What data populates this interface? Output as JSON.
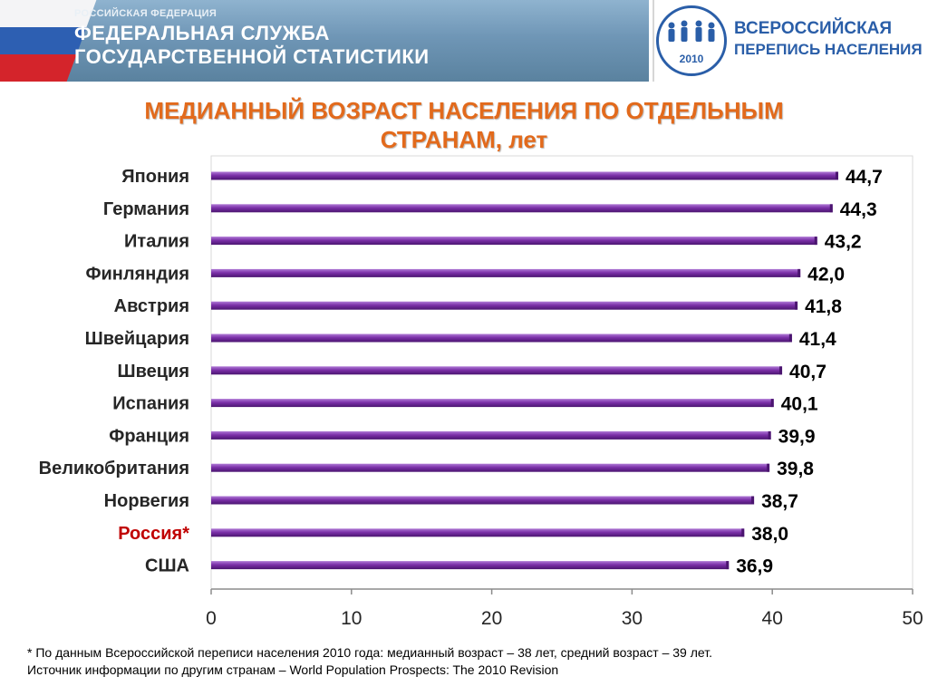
{
  "header": {
    "small": "РОССИЙСКАЯ ФЕДЕРАЦИЯ",
    "line1": "ФЕДЕРАЛЬНАЯ СЛУЖБА",
    "line2": "ГОСУДАРСТВЕННОЙ СТАТИСТИКИ",
    "logo_text1": "ВСЕРОССИЙСКАЯ",
    "logo_text2": "ПЕРЕПИСЬ НАСЕЛЕНИЯ",
    "logo_year": "2010"
  },
  "colors": {
    "bar": "#7b30a8",
    "bar_dark": "#4b1570",
    "highlight_label": "#c00000",
    "title": "#e26a1c"
  },
  "chart_data": {
    "type": "bar",
    "orientation": "horizontal",
    "title": "МЕДИАННЫЙ ВОЗРАСТ НАСЕЛЕНИЯ ПО ОТДЕЛЬНЫМ СТРАНАМ, лет",
    "categories": [
      "Япония",
      "Германия",
      "Италия",
      "Финляндия",
      "Австрия",
      "Швейцария",
      "Швеция",
      "Испания",
      "Франция",
      "Великобритания",
      "Норвегия",
      "Россия*",
      "США"
    ],
    "values": [
      44.7,
      44.3,
      43.2,
      42.0,
      41.8,
      41.4,
      40.7,
      40.1,
      39.9,
      39.8,
      38.7,
      38.0,
      36.9
    ],
    "value_labels": [
      "44,7",
      "44,3",
      "43,2",
      "42,0",
      "41,8",
      "41,4",
      "40,7",
      "40,1",
      "39,9",
      "39,8",
      "38,7",
      "38,0",
      "36,9"
    ],
    "highlight": "Россия*",
    "xlim": [
      0,
      50
    ],
    "xticks": [
      0,
      10,
      20,
      30,
      40,
      50
    ],
    "grid": false
  },
  "footnote": {
    "line1": "* По данным Всероссийской переписи населения 2010 года: медианный возраст – 38 лет, средний возраст – 39 лет.",
    "line2": "Источник информации по другим странам – World Population Prospects: The 2010 Revision"
  }
}
